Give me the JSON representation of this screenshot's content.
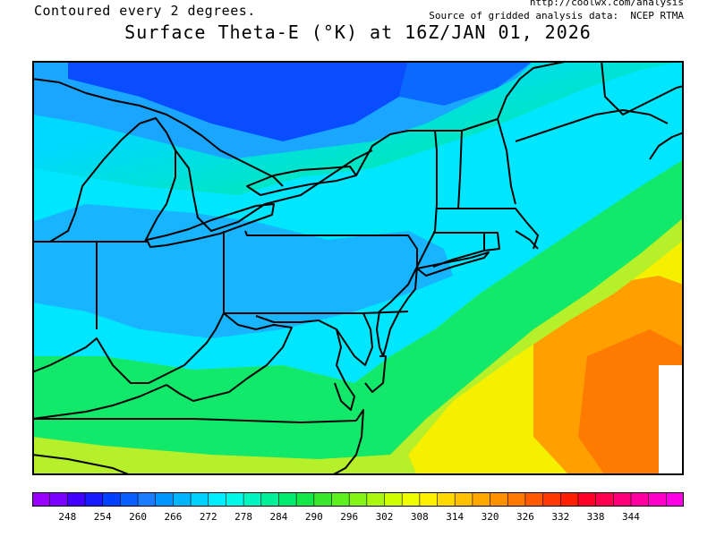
{
  "header": {
    "contour_note": "Contoured every 2 degrees.",
    "url": "http://coolwx.com/analysis",
    "source": "Source of gridded analysis data:  NCEP RTMA",
    "title": "Surface Theta-E (°K) at 16Z/JAN 01, 2026"
  },
  "colorbar": {
    "colors": [
      "#9a00ff",
      "#7a00ff",
      "#4400ff",
      "#1a1aff",
      "#0040ff",
      "#0a60ff",
      "#1c7cff",
      "#0096ff",
      "#00b4ff",
      "#00d2ff",
      "#00ecff",
      "#00f8e8",
      "#00f5c0",
      "#00f09a",
      "#00ea70",
      "#14e848",
      "#38e82c",
      "#5ef01e",
      "#84f414",
      "#aaf810",
      "#ceff00",
      "#f0ff00",
      "#ffef00",
      "#ffd800",
      "#ffc000",
      "#ffa800",
      "#ff9000",
      "#ff7800",
      "#ff5a00",
      "#ff3a00",
      "#ff1e00",
      "#ff0028",
      "#ff0050",
      "#ff0078",
      "#ff00a0",
      "#ff00c8",
      "#ff00e6"
    ],
    "tick_labels": [
      "248",
      "254",
      "260",
      "266",
      "272",
      "278",
      "284",
      "290",
      "296",
      "302",
      "308",
      "314",
      "320",
      "326",
      "332",
      "338",
      "344"
    ]
  },
  "legend_colors": {
    "coldest_shown": "#0a4dff",
    "mid_blue": "#1aa6ff",
    "cyan": "#00e6ff",
    "green": "#12e86a",
    "yellow_green": "#b6f02a",
    "yellow": "#f6f200",
    "orange": "#ff9a00",
    "warmest_shown": "#ff6a00"
  }
}
